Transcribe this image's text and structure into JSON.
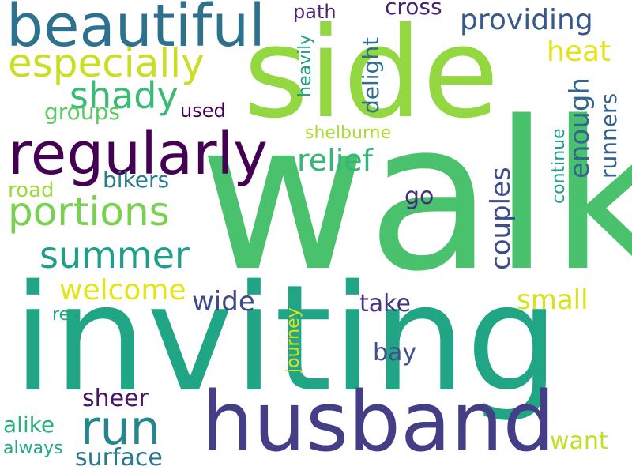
{
  "words": [
    {
      "text": "walk",
      "color": "#4ac16d"
    },
    {
      "text": "inviting",
      "color": "#21a685"
    },
    {
      "text": "side",
      "color": "#93d741"
    },
    {
      "text": "husband",
      "color": "#433e85"
    },
    {
      "text": "beautiful",
      "color": "#2c728e"
    },
    {
      "text": "regularly",
      "color": "#440154"
    },
    {
      "text": "especially",
      "color": "#c8e020"
    },
    {
      "text": "portions",
      "color": "#7ad151"
    },
    {
      "text": "shady",
      "color": "#3bbb75"
    },
    {
      "text": "run",
      "color": "#24878e"
    },
    {
      "text": "summer",
      "color": "#1f9e89"
    },
    {
      "text": "providing",
      "color": "#38598c"
    },
    {
      "text": "heat",
      "color": "#e2e418"
    },
    {
      "text": "relief",
      "color": "#35b779"
    },
    {
      "text": "welcome",
      "color": "#e5e419"
    },
    {
      "text": "wide",
      "color": "#3e4a89"
    },
    {
      "text": "small",
      "color": "#d8e219"
    },
    {
      "text": "take",
      "color": "#46337e"
    },
    {
      "text": "bay",
      "color": "#3b528b"
    },
    {
      "text": "cross",
      "color": "#482173"
    },
    {
      "text": "sheer",
      "color": "#471365"
    },
    {
      "text": "surface",
      "color": "#2a788e"
    },
    {
      "text": "want",
      "color": "#bddf26"
    },
    {
      "text": "alike",
      "color": "#2ab07f"
    },
    {
      "text": "always",
      "color": "#22a884"
    },
    {
      "text": "bikers",
      "color": "#287d8e"
    },
    {
      "text": "groups",
      "color": "#5ec962"
    },
    {
      "text": "road",
      "color": "#9fda3a"
    },
    {
      "text": "used",
      "color": "#440154"
    },
    {
      "text": "path",
      "color": "#482475"
    },
    {
      "text": "go",
      "color": "#472d7b"
    },
    {
      "text": "rec",
      "color": "#25ab82"
    },
    {
      "text": "shelburne",
      "color": "#addc30"
    },
    {
      "text": "couples",
      "color": "#3e4c8a"
    },
    {
      "text": "enough",
      "color": "#31668e"
    },
    {
      "text": "runners",
      "color": "#33638d"
    },
    {
      "text": "delight",
      "color": "#2e6f8e"
    },
    {
      "text": "heavily",
      "color": "#1fa187"
    },
    {
      "text": "continue",
      "color": "#1e9b8a"
    },
    {
      "text": "journey",
      "color": "#dde318"
    }
  ]
}
